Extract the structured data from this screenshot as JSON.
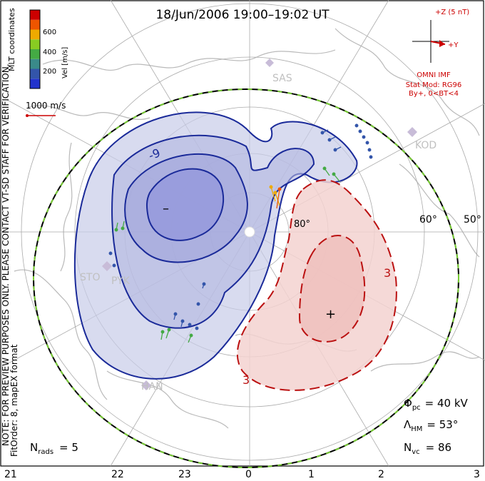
{
  "title": "18/Jun/2006  19:00–19:02  UT",
  "coord_label": "MLT coordinates",
  "color_bar": {
    "label": "Vel [m/s]",
    "ticks": [
      "600",
      "400",
      "200"
    ],
    "colors": [
      "#2233cc",
      "#3355aa",
      "#3a8a8a",
      "#44aa44",
      "#88cc22",
      "#eeaa00",
      "#ee5500",
      "#cc0000"
    ]
  },
  "velocity_scale": "1000 m/s",
  "imf": {
    "z_label": "+Z (5 nT)",
    "y_label": "+Y",
    "source": "OMNI IMF",
    "model": "Stat Mod: RG96",
    "condition": "By+, 0<BT<4"
  },
  "stations": [
    "SAS",
    "KOD",
    "STO",
    "PYK",
    "HAN"
  ],
  "lat_labels": [
    "60°",
    "50°",
    "80°"
  ],
  "contour_labels": {
    "neg": "-9",
    "pos": "3",
    "pos2": "3"
  },
  "cell_marks": {
    "min": "–",
    "max": "+"
  },
  "note": "NOTE: FOR PREVIEW PURPOSES ONLY. PLEASE CONTACT VT-SD STAFF FOR VERIFICATION.",
  "fit_order": "FitOrder: 8, mapEX format",
  "stats": {
    "phi_pc": "= 40 kV",
    "lambda_hm": "= 53°",
    "n_vc": "= 86",
    "n_rads": "= 5"
  },
  "stat_symbols": {
    "phi": "Φ",
    "phi_sub": "pc",
    "lambda": "Λ",
    "lambda_sub": "HM",
    "nvc": "N",
    "nvc_sub": "vc",
    "nrads": "N",
    "nrads_sub": "rads"
  },
  "mlt_ticks": [
    "21",
    "22",
    "23",
    "0",
    "1",
    "2",
    "3"
  ],
  "colors": {
    "neg": "#1a2a99",
    "neg_fill": "#c8cce8",
    "pos": "#bb1111",
    "pos_fill": "#f3d2d0",
    "boundary_green": "#77cc33"
  }
}
